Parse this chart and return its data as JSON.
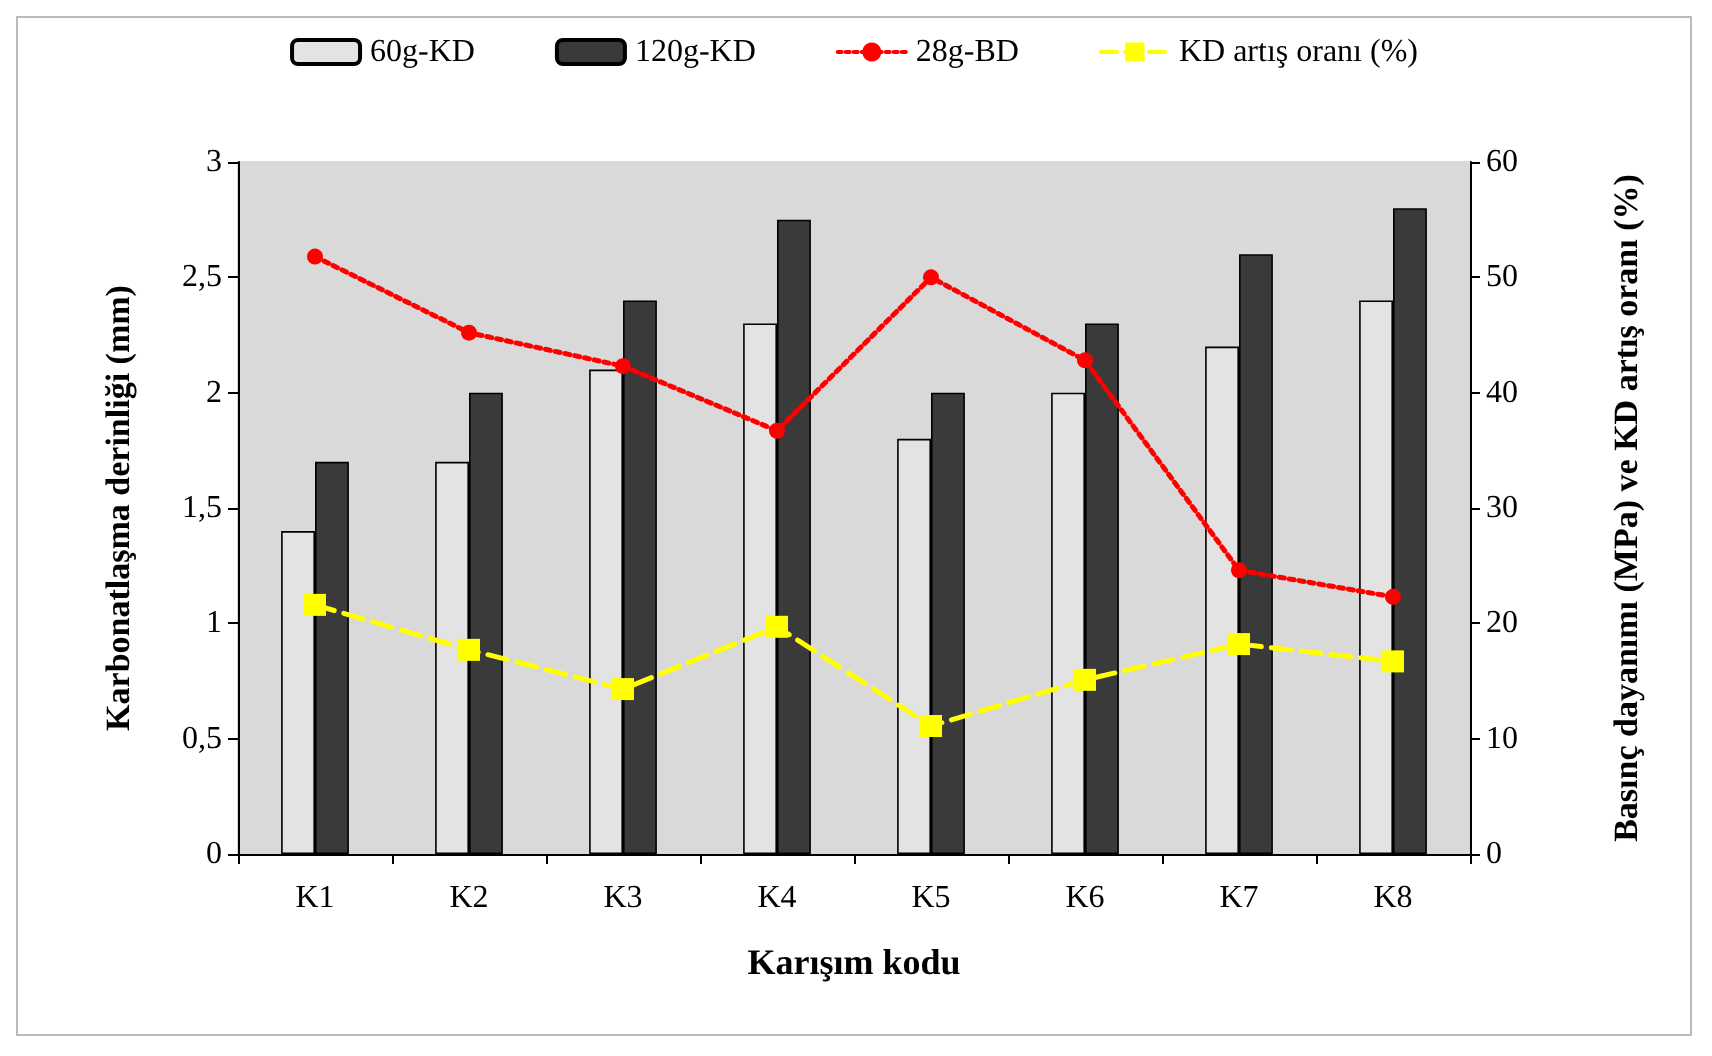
{
  "chart_data": {
    "type": "bar",
    "xlabel": "Karışım kodu",
    "ylabel": "Karbonatlaşma derinliği (mm)",
    "y2label": "Basınç dayanımı (MPa) ve KD artış oranı (%)",
    "categories": [
      "K1",
      "K2",
      "K3",
      "K4",
      "K5",
      "K6",
      "K7",
      "K8"
    ],
    "series": [
      {
        "name": "60g-KD",
        "color": "#e3e3e3",
        "values": [
          1.4,
          1.7,
          2.1,
          2.3,
          1.8,
          2.0,
          2.2,
          2.4
        ]
      },
      {
        "name": "120g-KD",
        "color": "#3a3a3a",
        "values": [
          1.7,
          2.0,
          2.4,
          2.75,
          2.0,
          2.3,
          2.6,
          2.8
        ]
      },
      {
        "name": "28g-BD",
        "type": "line",
        "axis": "y2",
        "color": "#ff0000",
        "marker": "circle",
        "line_style": "dotted",
        "values": [
          51.8,
          45.2,
          42.3,
          36.7,
          50.0,
          42.8,
          24.6,
          22.3
        ]
      },
      {
        "name": "KD artış oranı (%)",
        "type": "line",
        "axis": "y2",
        "color": "#ffff00",
        "marker": "square",
        "line_style": "dashed",
        "values": [
          21.6,
          17.7,
          14.3,
          19.7,
          11.1,
          15.1,
          18.2,
          16.7
        ]
      }
    ],
    "ylim": [
      0,
      3
    ],
    "yticks": [
      0,
      {
        "value": 0.5,
        "label": "0,5"
      },
      1,
      {
        "value": 1.5,
        "label": "1,5"
      },
      2,
      {
        "value": 2.5,
        "label": "2,5"
      },
      3
    ],
    "y2lim": [
      0,
      60
    ],
    "y2ticks": [
      0,
      10,
      20,
      30,
      40,
      50,
      60
    ],
    "grid": false,
    "legend": "top"
  }
}
